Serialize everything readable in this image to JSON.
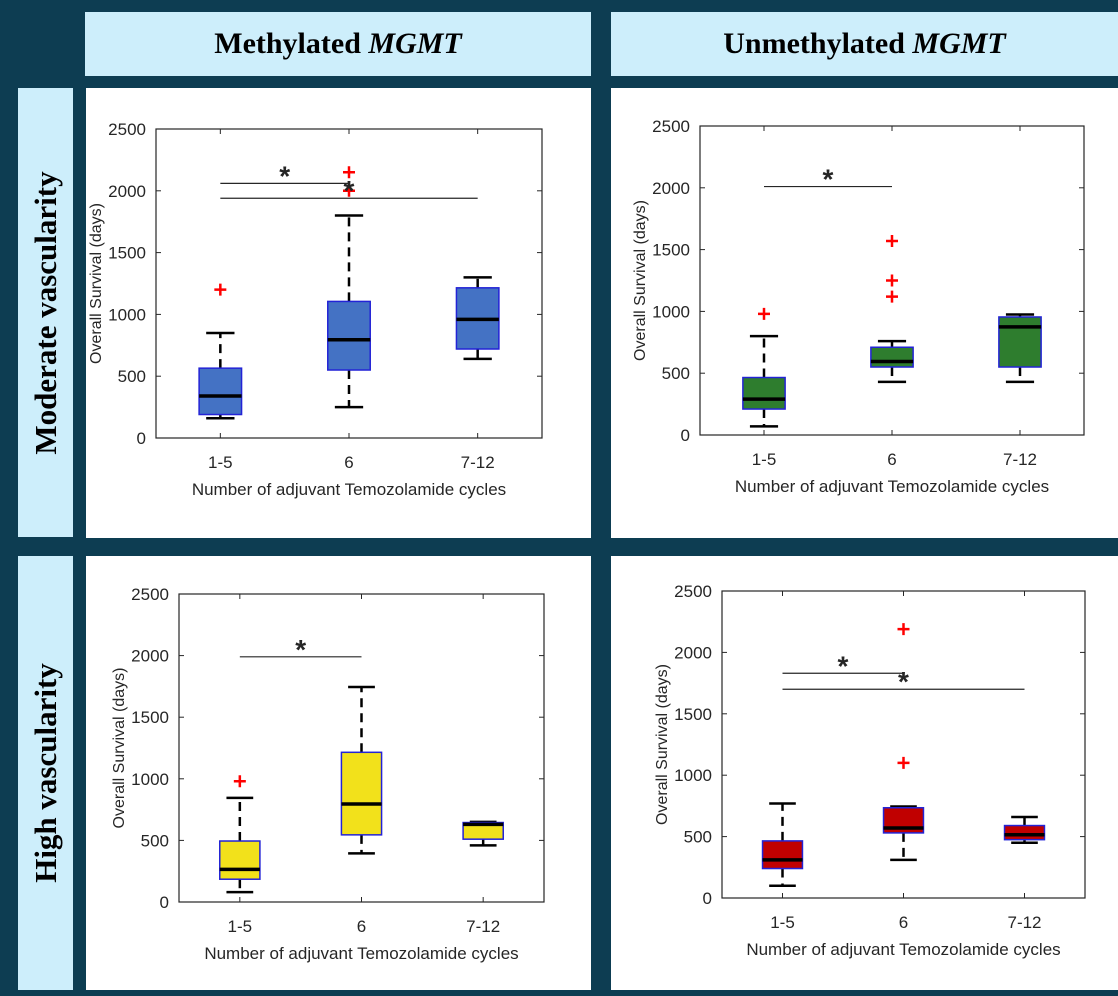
{
  "headers": {
    "col1": {
      "prefix": "Methylated ",
      "gene": "MGMT"
    },
    "col2": {
      "prefix": "Unmethylated ",
      "gene": "MGMT"
    },
    "row1": "Moderate vascularity",
    "row2": "High vascularity"
  },
  "chart_data": [
    {
      "type": "box",
      "panel": "methylated-moderate",
      "xlabel": "Number of adjuvant Temozolamide cycles",
      "ylabel": "Overall Survival (days)",
      "ylim": [
        0,
        2500
      ],
      "yticks": [
        0,
        500,
        1000,
        1500,
        2000,
        2500
      ],
      "categories": [
        "1-5",
        "6",
        "7-12"
      ],
      "color": "#4472c4",
      "boxes": [
        {
          "min": 160,
          "q1": 190,
          "median": 340,
          "q3": 565,
          "max": 850,
          "outliers": [
            1200
          ]
        },
        {
          "min": 250,
          "q1": 550,
          "median": 795,
          "q3": 1105,
          "max": 1800,
          "outliers": [
            2000,
            2150
          ]
        },
        {
          "min": 640,
          "q1": 720,
          "median": 960,
          "q3": 1215,
          "max": 1300,
          "outliers": []
        }
      ],
      "significance": [
        {
          "from": "1-5",
          "to": "6",
          "y": 2060,
          "label": "*"
        },
        {
          "from": "1-5",
          "to": "7-12",
          "y": 1940,
          "label": "*"
        }
      ]
    },
    {
      "type": "box",
      "panel": "unmethylated-moderate",
      "xlabel": "Number of adjuvant Temozolamide cycles",
      "ylabel": "Overall Survival (days)",
      "ylim": [
        0,
        2500
      ],
      "yticks": [
        0,
        500,
        1000,
        1500,
        2000,
        2500
      ],
      "categories": [
        "1-5",
        "6",
        "7-12"
      ],
      "color": "#2e7d2e",
      "boxes": [
        {
          "min": 70,
          "q1": 210,
          "median": 290,
          "q3": 465,
          "max": 800,
          "outliers": [
            980
          ]
        },
        {
          "min": 430,
          "q1": 550,
          "median": 595,
          "q3": 710,
          "max": 760,
          "outliers": [
            1120,
            1250,
            1570
          ]
        },
        {
          "min": 430,
          "q1": 550,
          "median": 875,
          "q3": 955,
          "max": 975,
          "outliers": []
        }
      ],
      "significance": [
        {
          "from": "1-5",
          "to": "6",
          "y": 2010,
          "label": "*"
        }
      ]
    },
    {
      "type": "box",
      "panel": "methylated-high",
      "xlabel": "Number of adjuvant Temozolamide cycles",
      "ylabel": "Overall Survival (days)",
      "ylim": [
        0,
        2500
      ],
      "yticks": [
        0,
        500,
        1000,
        1500,
        2000,
        2500
      ],
      "categories": [
        "1-5",
        "6",
        "7-12"
      ],
      "color": "#f2e11b",
      "boxes": [
        {
          "min": 80,
          "q1": 185,
          "median": 265,
          "q3": 495,
          "max": 845,
          "outliers": [
            980
          ]
        },
        {
          "min": 395,
          "q1": 545,
          "median": 795,
          "q3": 1215,
          "max": 1745,
          "outliers": []
        },
        {
          "min": 460,
          "q1": 510,
          "median": 630,
          "q3": 645,
          "max": 650,
          "outliers": []
        }
      ],
      "significance": [
        {
          "from": "1-5",
          "to": "6",
          "y": 1990,
          "label": "*"
        }
      ]
    },
    {
      "type": "box",
      "panel": "unmethylated-high",
      "xlabel": "Number of adjuvant Temozolamide cycles",
      "ylabel": "Overall Survival (days)",
      "ylim": [
        0,
        2500
      ],
      "yticks": [
        0,
        500,
        1000,
        1500,
        2000,
        2500
      ],
      "categories": [
        "1-5",
        "6",
        "7-12"
      ],
      "color": "#c00000",
      "boxes": [
        {
          "min": 100,
          "q1": 240,
          "median": 310,
          "q3": 465,
          "max": 770,
          "outliers": []
        },
        {
          "min": 310,
          "q1": 530,
          "median": 570,
          "q3": 735,
          "max": 745,
          "outliers": [
            1100,
            2190
          ]
        },
        {
          "min": 450,
          "q1": 475,
          "median": 515,
          "q3": 590,
          "max": 660,
          "outliers": []
        }
      ],
      "significance": [
        {
          "from": "1-5",
          "to": "6",
          "y": 1830,
          "label": "*"
        },
        {
          "from": "1-5",
          "to": "7-12",
          "y": 1700,
          "label": "*"
        }
      ]
    }
  ]
}
